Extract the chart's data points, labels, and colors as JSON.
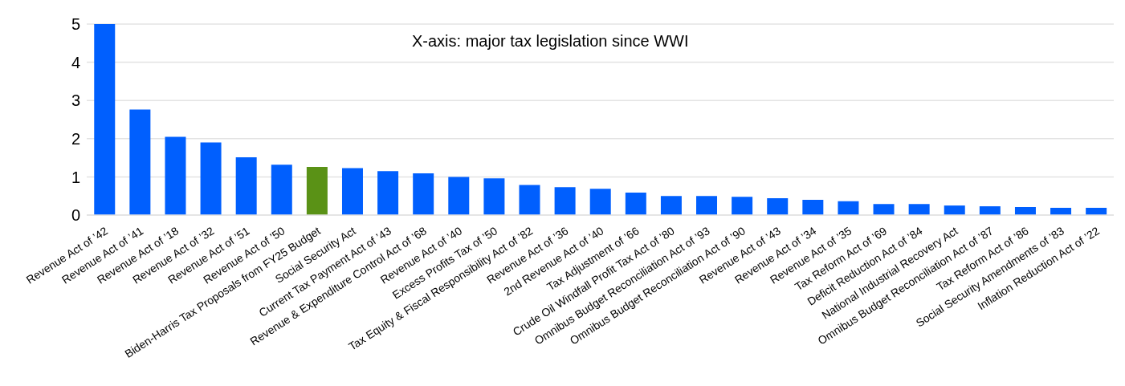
{
  "chart_data": {
    "type": "bar",
    "annotations": [
      "X-axis: major tax legislation since WWI"
    ],
    "categories": [
      "Revenue Act of ’42",
      "Revenue Act of ’41",
      "Revenue Act of ’18",
      "Revenue Act of ’32",
      "Revenue Act of ’51",
      "Revenue Act of ’50",
      "Biden-Harris Tax Proposals from FY25 Budget",
      "Social Security Act",
      "Current Tax Payment Act of ’43",
      "Revenue & Expenditure Control Act of ’68",
      "Revenue Act of ’40",
      "Excess Profits Tax of ’50",
      "Tax Equity & Fiscal Responsibility Act of ’82",
      "Revenue Act of ’36",
      "2nd Revenue Act of ’40",
      "Tax Adjustment of ’66",
      "Crude Oil Windfall Profit Tax Act of ’80",
      "Omnibus Budget Reconciliation Act of ’93",
      "Omnibus Budget Reconciliation Act of ’90",
      "Revenue Act of ’43",
      "Revenue Act of ’34",
      "Revenue Act of ’35",
      "Tax Reform Act of ’69",
      "Deficit Reduction Act of ’84",
      "National Industrial Recovery Act",
      "Omnibus Budget Reconciliation Act of ’87",
      "Tax Reform Act of ’86",
      "Social Security Amendments of ’83",
      "Inflation Reduction Act of ’22"
    ],
    "values": [
      5.0,
      2.76,
      2.05,
      1.9,
      1.51,
      1.32,
      1.26,
      1.23,
      1.15,
      1.09,
      1.0,
      0.96,
      0.79,
      0.73,
      0.69,
      0.59,
      0.5,
      0.5,
      0.48,
      0.44,
      0.4,
      0.36,
      0.29,
      0.29,
      0.25,
      0.23,
      0.21,
      0.19,
      0.19
    ],
    "colors": [
      "#005ffe",
      "#005ffe",
      "#005ffe",
      "#005ffe",
      "#005ffe",
      "#005ffe",
      "#5a9216",
      "#005ffe",
      "#005ffe",
      "#005ffe",
      "#005ffe",
      "#005ffe",
      "#005ffe",
      "#005ffe",
      "#005ffe",
      "#005ffe",
      "#005ffe",
      "#005ffe",
      "#005ffe",
      "#005ffe",
      "#005ffe",
      "#005ffe",
      "#005ffe",
      "#005ffe",
      "#005ffe",
      "#005ffe",
      "#005ffe",
      "#005ffe",
      "#005ffe"
    ],
    "ylim": [
      0,
      5
    ],
    "yticks": [
      0,
      1,
      2,
      3,
      4,
      5
    ],
    "grid": "y"
  }
}
